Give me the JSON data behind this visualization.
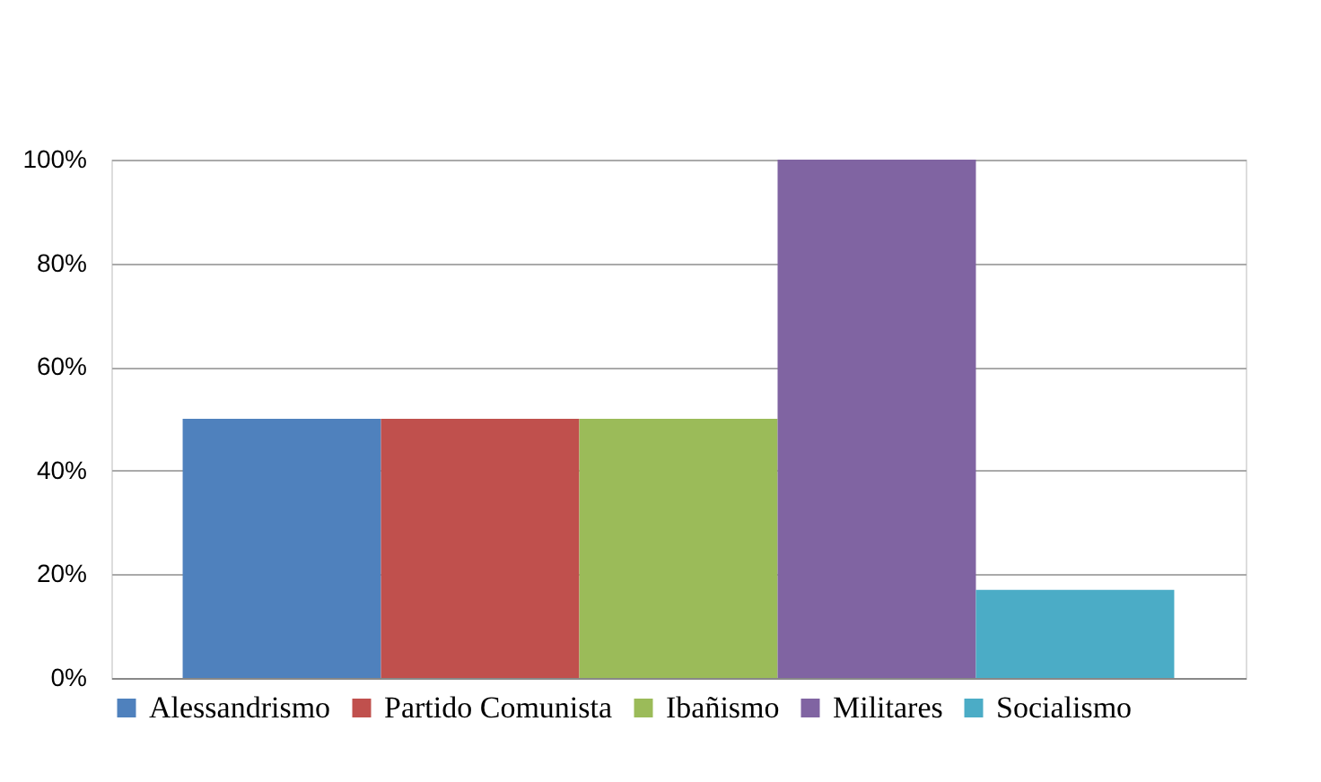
{
  "chart_data": {
    "type": "bar",
    "categories": [
      null
    ],
    "series": [
      {
        "name": "Alessandrismo",
        "color": "#4f81bd",
        "values": [
          50
        ]
      },
      {
        "name": "Partido Comunista",
        "color": "#c0504d",
        "values": [
          50
        ]
      },
      {
        "name": "Ibañismo",
        "color": "#9bbb59",
        "values": [
          50
        ]
      },
      {
        "name": "Militares",
        "color": "#8064a2",
        "values": [
          100
        ]
      },
      {
        "name": "Socialismo",
        "color": "#4bacc6",
        "values": [
          17
        ]
      }
    ],
    "ylim": [
      0,
      100
    ],
    "yticks": [
      {
        "value": 0,
        "label": "0%"
      },
      {
        "value": 20,
        "label": "20%"
      },
      {
        "value": 40,
        "label": "40%"
      },
      {
        "value": 60,
        "label": "60%"
      },
      {
        "value": 80,
        "label": "80%"
      },
      {
        "value": 100,
        "label": "100%"
      }
    ],
    "grid": "y",
    "legend": "bottom",
    "tick_labels": "y"
  }
}
